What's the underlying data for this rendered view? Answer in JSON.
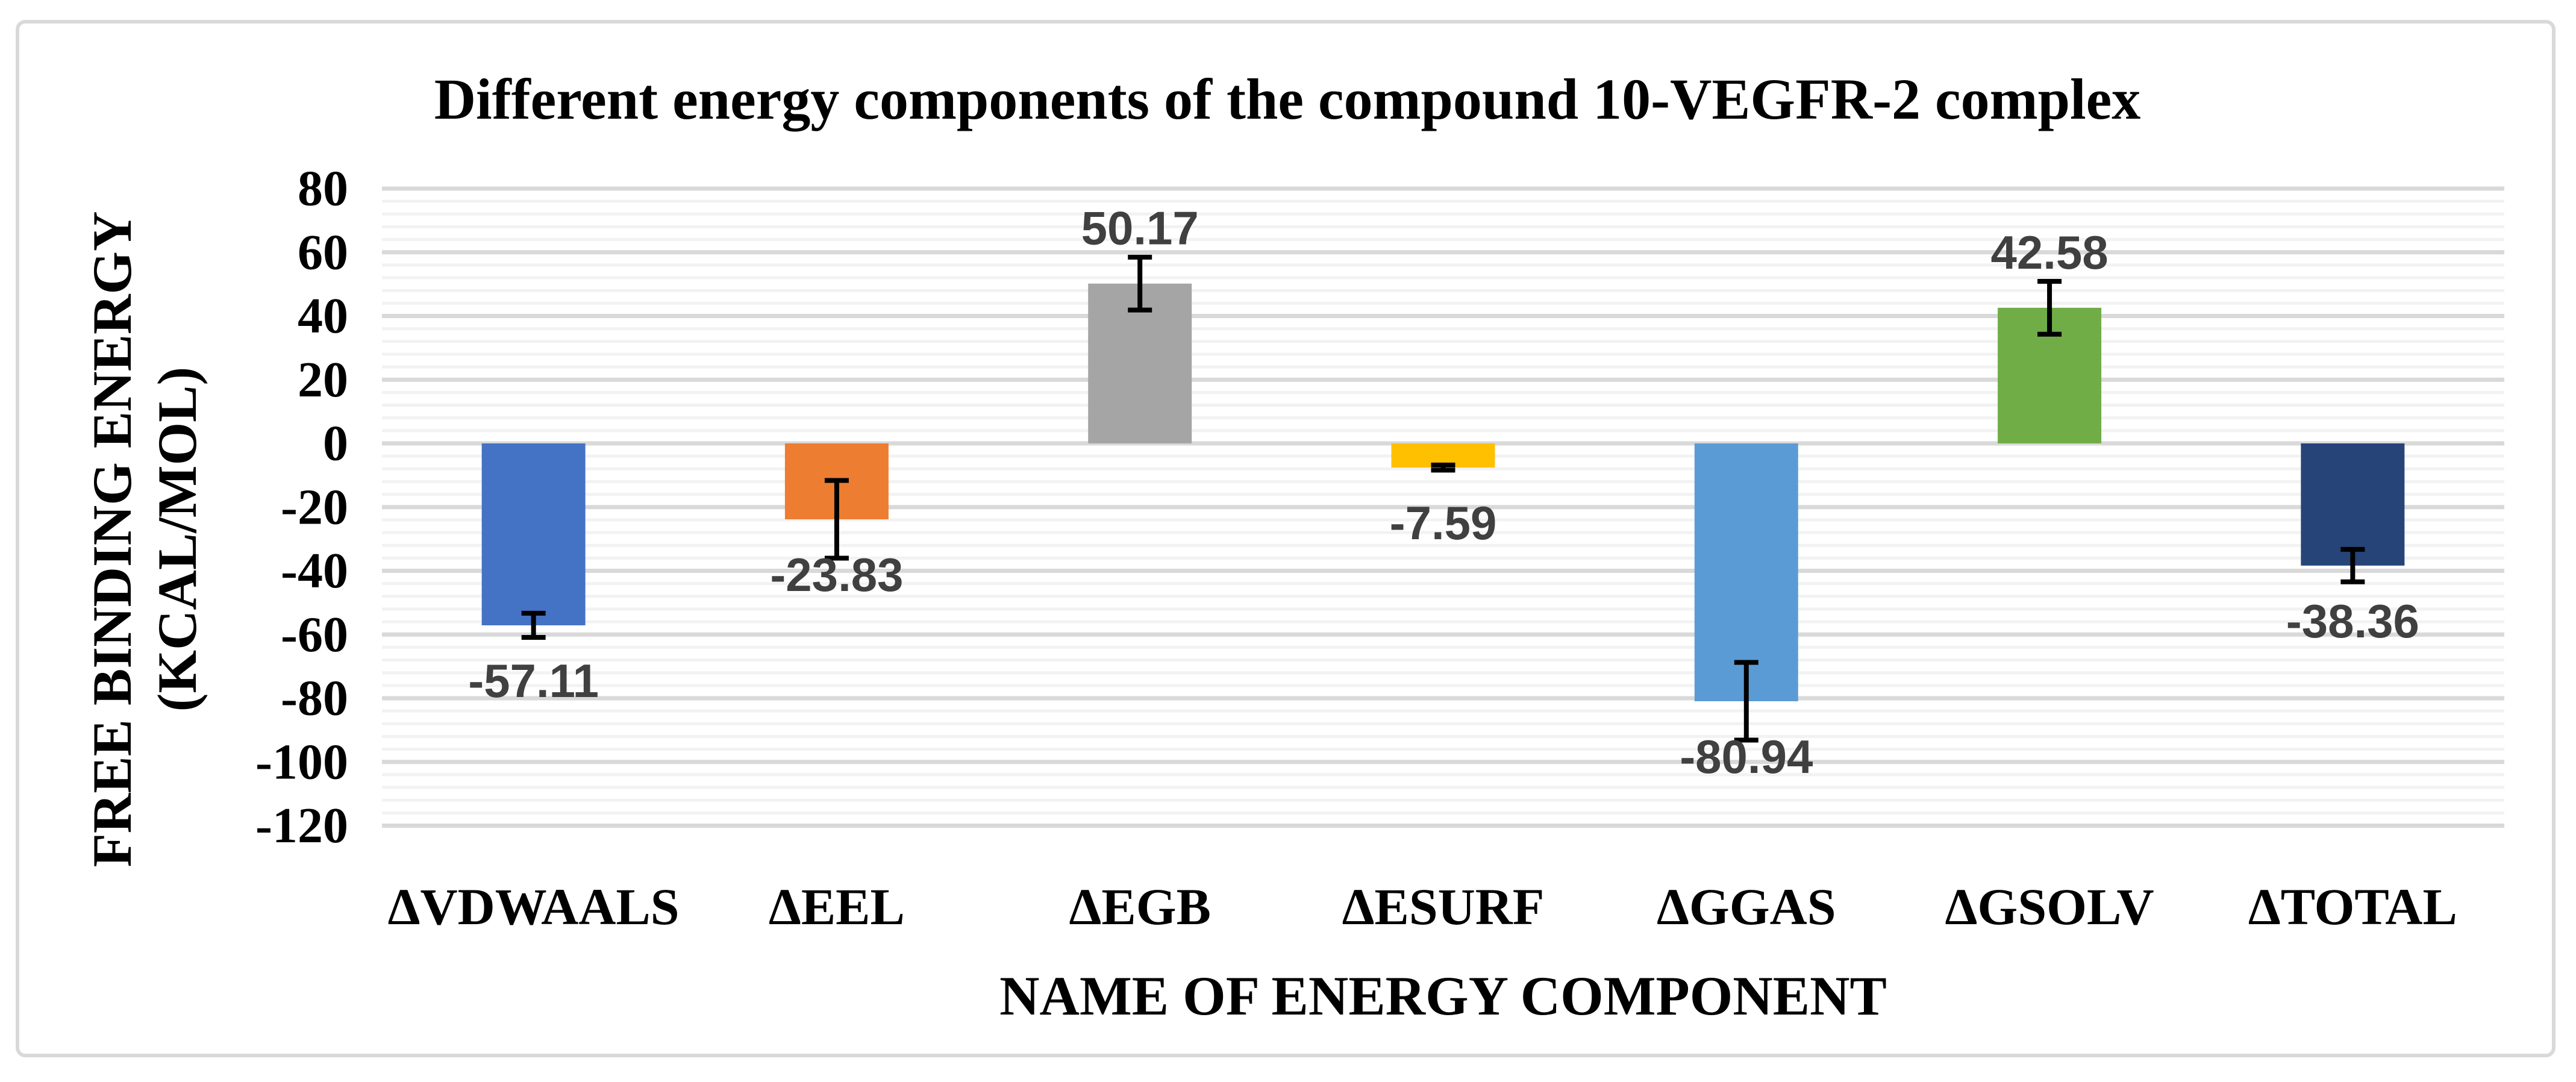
{
  "chart_data": {
    "type": "bar",
    "title": "Different energy components of the compound 10-VEGFR-2 complex",
    "xlabel": "NAME OF ENERGY COMPONENT",
    "ylabel_line1": "FREE BINDING ENERGY",
    "ylabel_line2": "(KCAL/MOL)",
    "categories": [
      "ΔVDWAALS",
      "ΔEEL",
      "ΔEGB",
      "ΔESURF",
      "ΔGGAS",
      "ΔGSOLV",
      "ΔTOTAL"
    ],
    "values": [
      -57.11,
      -23.83,
      50.17,
      -7.59,
      -80.94,
      42.58,
      -38.36
    ],
    "value_labels": [
      "-57.11",
      "-23.83",
      "50.17",
      "-7.59",
      "-80.94",
      "42.58",
      "-38.36"
    ],
    "error_bars": [
      3.8,
      12.2,
      8.3,
      0.8,
      12.2,
      8.3,
      5.1
    ],
    "bar_colors": [
      "#4472C4",
      "#ED7D31",
      "#A5A5A5",
      "#FFC000",
      "#5B9BD5",
      "#70AD47",
      "#264478"
    ],
    "ylim": [
      -120,
      80
    ],
    "ytick_step": 20,
    "yticks": [
      80,
      60,
      40,
      20,
      0,
      -20,
      -40,
      -60,
      -80,
      -100,
      -120
    ],
    "minor_tick_step": 4,
    "grid": "horizontal major+minor, no vertical axis line, no legend",
    "legend": "none",
    "error_bar_color": "#000000",
    "data_label_color": "#404040",
    "major_grid_color": "#D9D9D9",
    "minor_grid_color": "#F2F2F2",
    "frame_border_color": "#D9D9D9",
    "text_color": "#000000"
  }
}
